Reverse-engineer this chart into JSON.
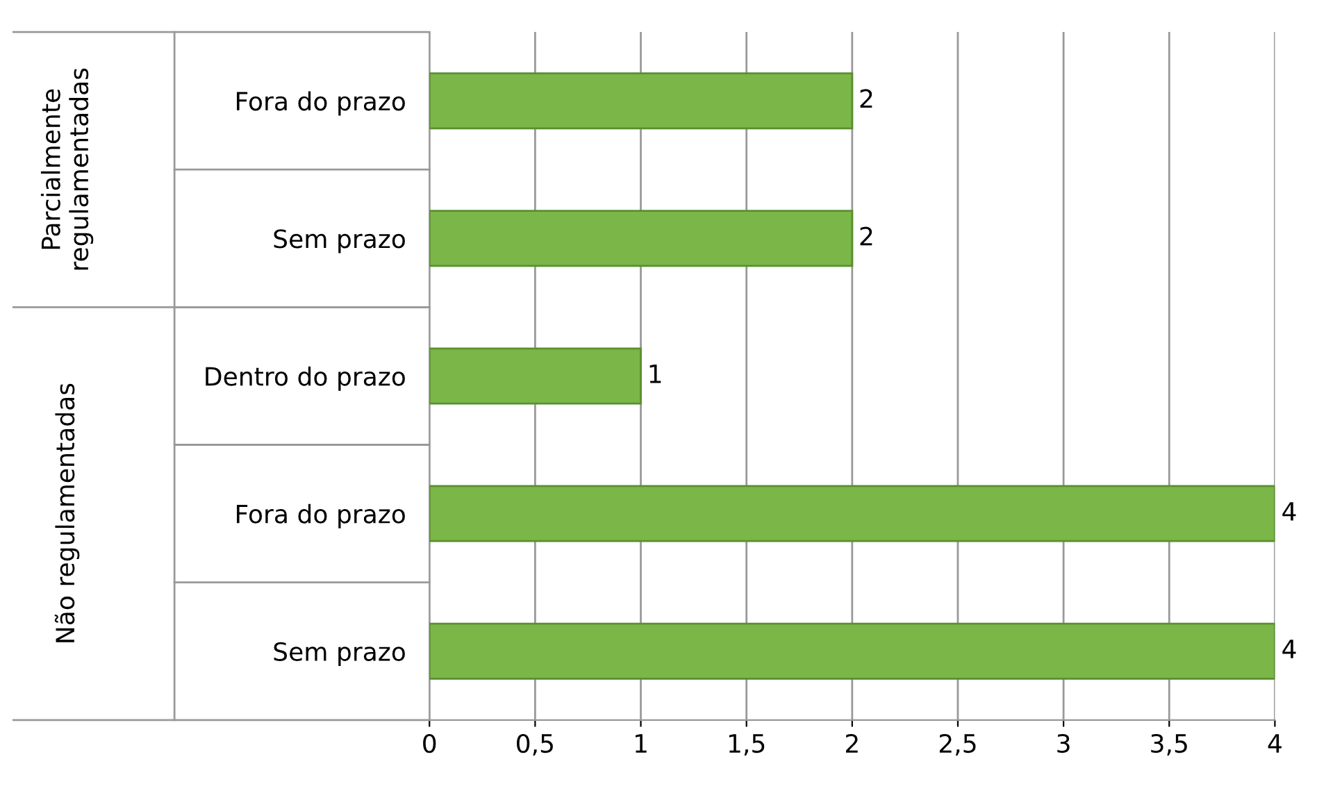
{
  "chart_data": {
    "type": "bar",
    "orientation": "horizontal",
    "categories": [
      "Fora do prazo",
      "Sem prazo",
      "Dentro do prazo",
      "Fora do prazo",
      "Sem prazo"
    ],
    "values": [
      2,
      2,
      1,
      4,
      4
    ],
    "color": "#7ab648",
    "data_labels": true,
    "grid": "x",
    "xlim": [
      0,
      4
    ],
    "xticks": [
      0,
      {
        "value": 0.5,
        "label": "0,5"
      },
      1,
      {
        "value": 1.5,
        "label": "1,5"
      },
      2,
      {
        "value": 2.5,
        "label": "2,5"
      },
      3,
      {
        "value": 3.5,
        "label": "3,5"
      },
      4
    ],
    "annotations": [
      "Parcialmente regulamentadas",
      "Não regulamentadas"
    ]
  }
}
